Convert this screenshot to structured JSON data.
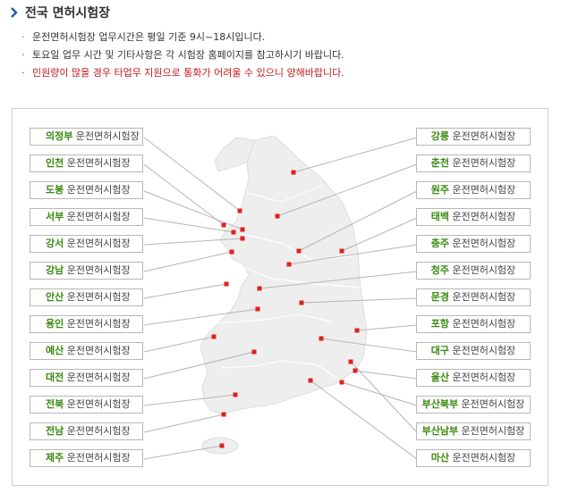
{
  "header": {
    "title": "전국 면허시험장",
    "icon": "chevron-right-icon"
  },
  "notices": [
    {
      "text": "운전면허시험장 업무시간은 평일 기준 9시~18시입니다.",
      "warn": false
    },
    {
      "text": "토요일 업무 시간 및 기타사항은 각 시험장 홈페이지를 참고하시기 바랍니다.",
      "warn": true
    },
    {
      "text": "민원량이 많을 경우 타업무 지원으로 통화가 어려울 수 있으니 양해바랍니다.",
      "warn": true
    }
  ],
  "suffix": "운전면허시험장",
  "colors": {
    "city": "#3a8a10",
    "marker": "#e02020",
    "line": "#b5b5b5",
    "warn": "#c0181b",
    "map": "#eeeeee"
  },
  "left_centers": [
    {
      "city": "의정부"
    },
    {
      "city": "인천"
    },
    {
      "city": "도봉"
    },
    {
      "city": "서부"
    },
    {
      "city": "강서"
    },
    {
      "city": "강남"
    },
    {
      "city": "안산"
    },
    {
      "city": "용인"
    },
    {
      "city": "예산"
    },
    {
      "city": "대전"
    },
    {
      "city": "전북"
    },
    {
      "city": "전남"
    },
    {
      "city": "제주"
    }
  ],
  "right_centers": [
    {
      "city": "강릉"
    },
    {
      "city": "춘천"
    },
    {
      "city": "원주"
    },
    {
      "city": "태백"
    },
    {
      "city": "충주"
    },
    {
      "city": "청주"
    },
    {
      "city": "문경"
    },
    {
      "city": "포항"
    },
    {
      "city": "대구"
    },
    {
      "city": "울산"
    },
    {
      "city": "부산북부"
    },
    {
      "city": "부산남부"
    },
    {
      "city": "마산"
    }
  ]
}
